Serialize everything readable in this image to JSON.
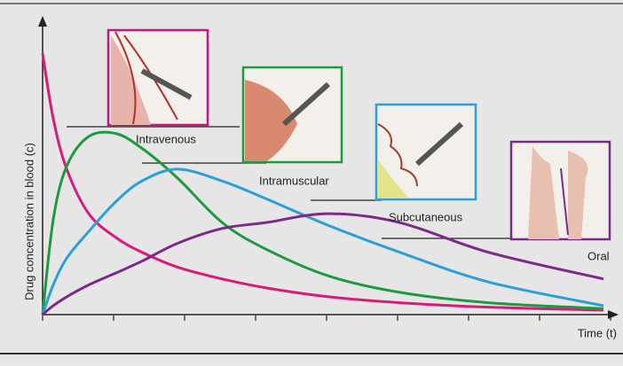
{
  "chart_data": {
    "type": "line",
    "y_label": "Drug concentration in blood (c)",
    "x_label": "Time (t)",
    "x": [
      0,
      0.15,
      0.34,
      0.65,
      1.03,
      1.4,
      1.9,
      2.53,
      3.15,
      4.03,
      5.03,
      6.28,
      7.9
    ],
    "xlim": [
      0,
      8.1
    ],
    "ylim": [
      0,
      10
    ],
    "xticks": [
      0,
      1,
      2,
      3,
      4,
      5,
      6,
      7,
      8
    ],
    "series": [
      {
        "name": "Intravenous",
        "color": "#d81b7a",
        "values": [
          8.8,
          6.6,
          4.9,
          3.4,
          2.6,
          2.1,
          1.6,
          1.2,
          0.9,
          0.6,
          0.4,
          0.25,
          0.15
        ]
      },
      {
        "name": "Intramuscular",
        "color": "#1e9a3e",
        "values": [
          0,
          3.2,
          5.0,
          6.0,
          6.1,
          5.6,
          4.6,
          3.1,
          2.2,
          1.3,
          0.75,
          0.4,
          0.2
        ]
      },
      {
        "name": "Subcutaneous",
        "color": "#2a9fd8",
        "values": [
          0,
          1.0,
          1.9,
          2.8,
          3.8,
          4.5,
          4.9,
          4.5,
          3.9,
          3.0,
          2.1,
          1.1,
          0.3
        ]
      },
      {
        "name": "Oral",
        "color": "#7b2a8a",
        "values": [
          0,
          0.3,
          0.6,
          1.0,
          1.4,
          1.8,
          2.4,
          2.9,
          3.1,
          3.4,
          3.1,
          2.1,
          1.2
        ]
      }
    ]
  }
}
